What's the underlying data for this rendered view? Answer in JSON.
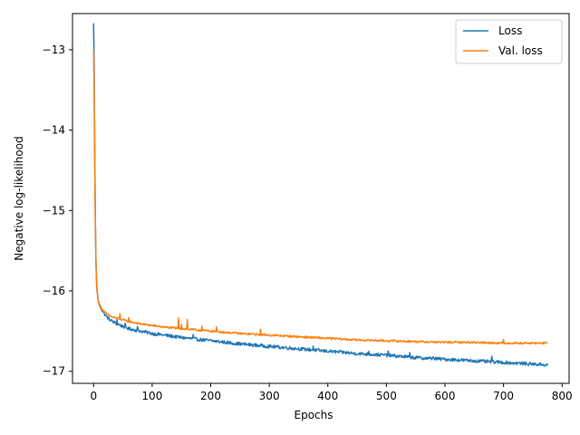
{
  "chart_data": {
    "type": "line",
    "title": "",
    "xlabel": "Epochs",
    "ylabel": "Negative log-likelihood",
    "xlim": [
      -36,
      812
    ],
    "ylim": [
      -17.15,
      -12.55
    ],
    "xticks": [
      0,
      100,
      200,
      300,
      400,
      500,
      600,
      700,
      800
    ],
    "yticks": [
      -17,
      -16,
      -15,
      -14,
      -13
    ],
    "xtick_labels": [
      "0",
      "100",
      "200",
      "300",
      "400",
      "500",
      "600",
      "700",
      "800"
    ],
    "ytick_labels": [
      "−17",
      "−16",
      "−15",
      "−14",
      "−13"
    ],
    "grid": false,
    "legend_position": "top-right",
    "series": [
      {
        "name": "Loss",
        "color": "#1f77b4",
        "x": [
          0,
          1,
          2,
          3,
          4,
          5,
          6,
          8,
          10,
          13,
          16,
          20,
          25,
          30,
          40,
          50,
          60,
          80,
          100,
          120,
          150,
          200,
          250,
          300,
          350,
          400,
          450,
          500,
          550,
          600,
          650,
          700,
          750,
          775
        ],
        "y": [
          -12.67,
          -13.2,
          -14.3,
          -15.1,
          -15.6,
          -15.85,
          -16.0,
          -16.12,
          -16.18,
          -16.22,
          -16.26,
          -16.3,
          -16.34,
          -16.37,
          -16.41,
          -16.44,
          -16.47,
          -16.5,
          -16.53,
          -16.55,
          -16.58,
          -16.62,
          -16.66,
          -16.69,
          -16.72,
          -16.75,
          -16.78,
          -16.8,
          -16.83,
          -16.85,
          -16.87,
          -16.89,
          -16.91,
          -16.92
        ]
      },
      {
        "name": "Val. loss",
        "color": "#ff7f0e",
        "x": [
          0,
          1,
          2,
          3,
          4,
          5,
          6,
          8,
          10,
          13,
          16,
          20,
          25,
          30,
          40,
          50,
          60,
          80,
          100,
          120,
          150,
          200,
          250,
          300,
          350,
          400,
          450,
          500,
          550,
          600,
          650,
          700,
          750,
          775
        ],
        "y": [
          -13.0,
          -13.5,
          -14.4,
          -15.15,
          -15.65,
          -15.9,
          -16.02,
          -16.12,
          -16.17,
          -16.21,
          -16.24,
          -16.27,
          -16.3,
          -16.32,
          -16.34,
          -16.36,
          -16.38,
          -16.41,
          -16.43,
          -16.45,
          -16.47,
          -16.5,
          -16.53,
          -16.55,
          -16.57,
          -16.59,
          -16.61,
          -16.62,
          -16.63,
          -16.64,
          -16.64,
          -16.65,
          -16.65,
          -16.65
        ]
      }
    ]
  }
}
